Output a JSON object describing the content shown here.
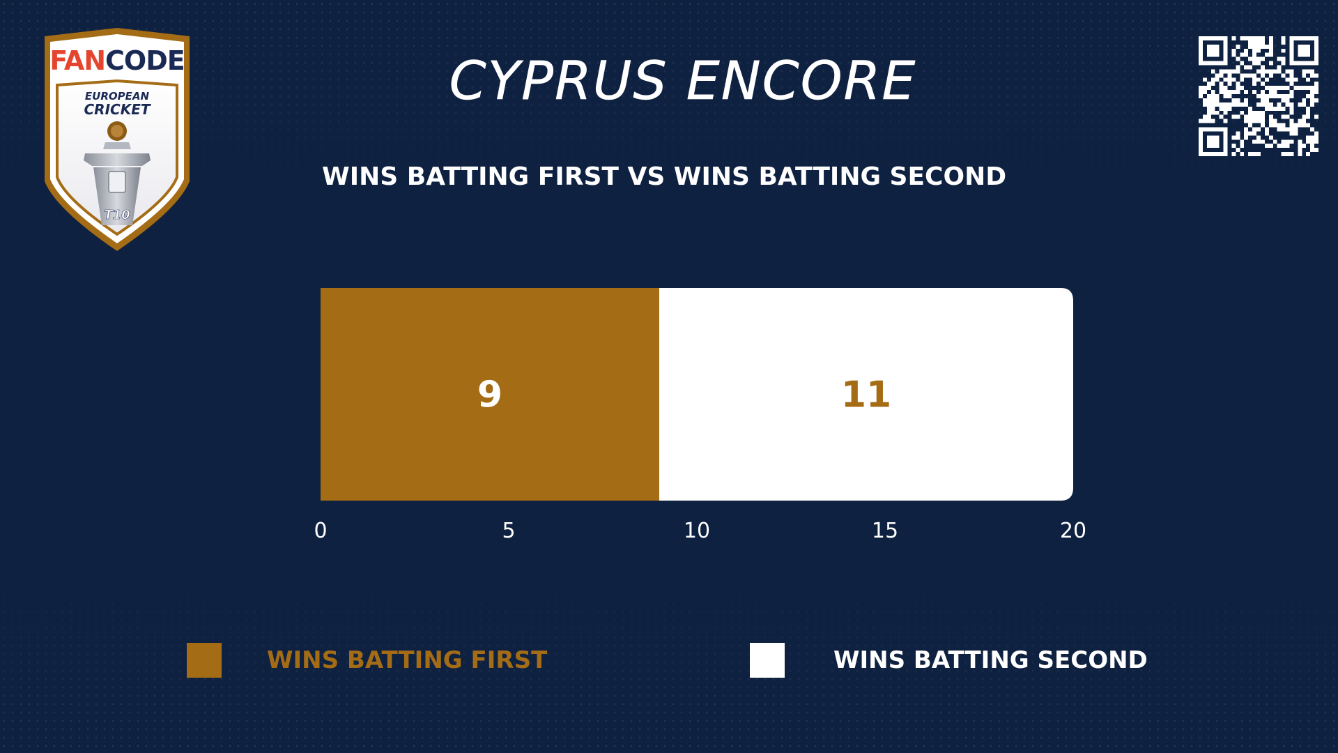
{
  "title": "CYPRUS ENCORE",
  "subtitle": "WINS BATTING FIRST VS WINS BATTING SECOND",
  "logo": {
    "brand_text": "FANCODE",
    "line1": "EUROPEAN",
    "line2": "CRICKET",
    "badge": "T10"
  },
  "colors": {
    "background": "#0e2140",
    "gold": "#a56c16",
    "white": "#ffffff"
  },
  "chart_data": {
    "type": "bar",
    "orientation": "horizontal",
    "stacked": true,
    "title": "WINS BATTING FIRST VS WINS BATTING SECOND",
    "series": [
      {
        "name": "WINS BATTING FIRST",
        "values": [
          9
        ],
        "color": "#a56c16",
        "label_color": "#ffffff"
      },
      {
        "name": "WINS BATTING SECOND",
        "values": [
          11
        ],
        "color": "#ffffff",
        "label_color": "#a56c16"
      }
    ],
    "xlim": [
      0,
      20
    ],
    "xticks": [
      0,
      5,
      10,
      15,
      20
    ],
    "grid": false,
    "legend": "bottom"
  },
  "legend": [
    {
      "label": "WINS BATTING FIRST",
      "color": "#a56c16",
      "text_color": "#a56c16"
    },
    {
      "label": "WINS BATTING SECOND",
      "color": "#ffffff",
      "text_color": "#ffffff"
    }
  ]
}
